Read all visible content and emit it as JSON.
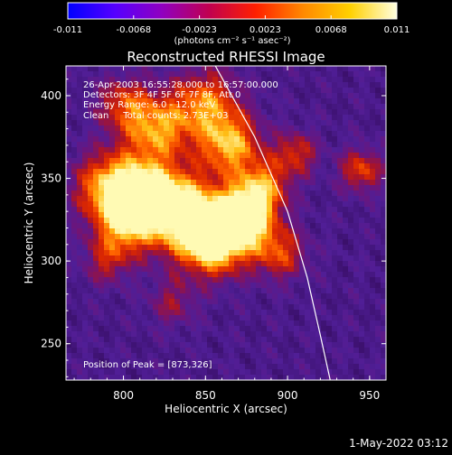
{
  "colorbar": {
    "ticks": [
      "-0.011",
      "-0.0068",
      "-0.0023",
      "0.0023",
      "0.0068",
      "0.011"
    ],
    "unit_label": "(photons cm⁻² s⁻¹ asec⁻²)",
    "colors": [
      "#0000ff",
      "#5500ff",
      "#9000c0",
      "#c00050",
      "#ff2000",
      "#ff8800",
      "#ffd000",
      "#ffffe0"
    ]
  },
  "chart_data": {
    "type": "heatmap",
    "title": "Reconstructed RHESSI Image",
    "xlabel": "Heliocentric X (arcsec)",
    "ylabel": "Heliocentric Y (arcsec)",
    "xlim": [
      765,
      960
    ],
    "ylim": [
      228,
      418
    ],
    "xticks": [
      800,
      850,
      900,
      950
    ],
    "yticks": [
      250,
      300,
      350,
      400
    ],
    "annotations": [
      "26-Apr-2003 16:55:28.000 to 16:57:00.000",
      "Detectors: 3F 4F 5F 6F 7F 8F, Att 0",
      "Energy Range: 6.0 - 12.0 keV",
      "Clean     Total counts: 2.73E+03",
      "Position of Peak = [873,326]"
    ],
    "peak": [
      873,
      326
    ],
    "limb_arc": [
      [
        856,
        418
      ],
      [
        880,
        375
      ],
      [
        900,
        330
      ],
      [
        912,
        290
      ],
      [
        920,
        255
      ],
      [
        926,
        228
      ]
    ],
    "hotspots": [
      {
        "x": 873,
        "y": 326,
        "amp": 1.0,
        "r": 12
      },
      {
        "x": 855,
        "y": 312,
        "amp": 0.9,
        "r": 14
      },
      {
        "x": 835,
        "y": 330,
        "amp": 0.85,
        "r": 16
      },
      {
        "x": 810,
        "y": 340,
        "amp": 0.8,
        "r": 15
      },
      {
        "x": 790,
        "y": 345,
        "amp": 0.55,
        "r": 14
      },
      {
        "x": 800,
        "y": 320,
        "amp": 0.45,
        "r": 12
      },
      {
        "x": 820,
        "y": 380,
        "amp": 0.6,
        "r": 14
      },
      {
        "x": 850,
        "y": 395,
        "amp": 0.55,
        "r": 14
      },
      {
        "x": 865,
        "y": 370,
        "amp": 0.65,
        "r": 13
      },
      {
        "x": 885,
        "y": 345,
        "amp": 0.55,
        "r": 11
      },
      {
        "x": 895,
        "y": 305,
        "amp": 0.45,
        "r": 11
      },
      {
        "x": 905,
        "y": 365,
        "amp": 0.4,
        "r": 9
      },
      {
        "x": 945,
        "y": 355,
        "amp": 0.45,
        "r": 9
      },
      {
        "x": 800,
        "y": 395,
        "amp": 0.4,
        "r": 11
      },
      {
        "x": 830,
        "y": 275,
        "amp": 0.25,
        "r": 10
      },
      {
        "x": 790,
        "y": 300,
        "amp": 0.3,
        "r": 10
      }
    ]
  },
  "footer": {
    "timestamp": "1-May-2022 03:12"
  }
}
